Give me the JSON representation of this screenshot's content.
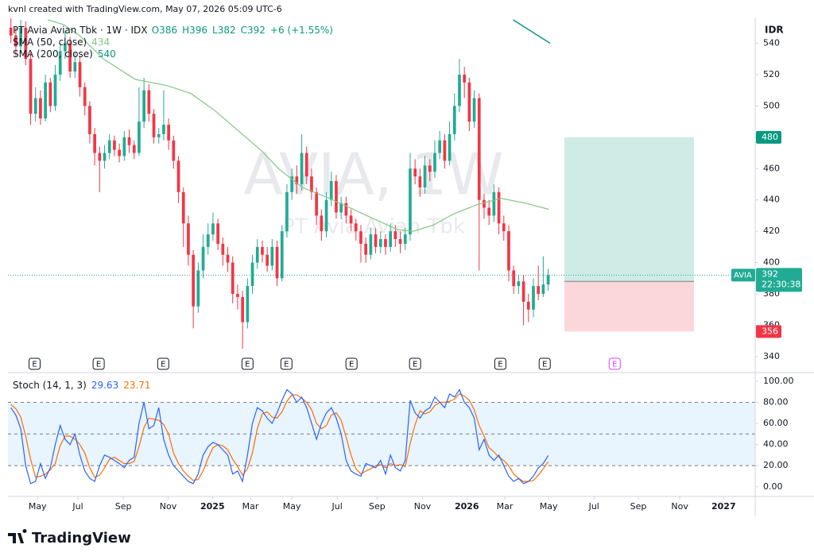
{
  "header": "kvnl created with TradingView.com, May 07, 2026 05:09 UTC-6",
  "logo": "TradingView",
  "chart_data": {
    "type": "candlestick",
    "symbol": "PT Avia Avian Tbk · 1W · IDX",
    "legend_values": [
      {
        "value": 386,
        "label": "O386"
      },
      {
        "value": 396,
        "label": "H396"
      },
      {
        "value": 382,
        "label": "L382"
      },
      {
        "value": 392,
        "label": "C392"
      },
      {
        "value": 6,
        "label": "+6 (+1.55%)"
      }
    ],
    "currency": "IDR",
    "up_color": "#22ab94",
    "down_color": "#f23645",
    "x": [
      -1,
      0,
      1,
      2,
      3,
      4,
      5,
      6,
      7,
      8,
      9,
      10,
      11,
      12,
      13,
      14,
      15,
      16,
      17,
      18,
      19,
      20,
      21,
      22,
      23,
      24,
      25,
      26,
      27,
      28,
      29,
      30,
      31,
      32,
      33,
      34,
      35,
      36,
      37,
      38,
      39,
      40,
      41,
      42,
      43,
      44,
      45,
      46,
      47,
      48,
      49,
      50,
      51,
      52,
      53,
      54,
      55,
      56,
      57,
      58,
      59,
      60,
      61,
      62,
      63,
      64,
      65,
      66,
      67,
      68,
      69,
      70,
      71,
      72,
      73,
      74,
      75,
      76,
      77,
      78,
      79,
      80,
      81,
      82,
      83,
      84,
      85,
      86,
      87,
      88,
      89,
      90,
      91,
      92,
      93,
      94,
      95,
      96,
      97,
      98,
      99,
      100,
      101,
      102,
      103,
      104,
      105,
      106,
      107,
      108
    ],
    "open": [
      550,
      545,
      538,
      550,
      530,
      495,
      505,
      492,
      515,
      500,
      520,
      535,
      540,
      522,
      528,
      512,
      500,
      482,
      470,
      465,
      470,
      478,
      472,
      468,
      480,
      475,
      470,
      490,
      510,
      495,
      480,
      482,
      488,
      478,
      465,
      445,
      425,
      405,
      372,
      395,
      410,
      418,
      425,
      412,
      405,
      400,
      380,
      378,
      362,
      385,
      400,
      410,
      405,
      398,
      410,
      390,
      420,
      445,
      455,
      450,
      470,
      455,
      445,
      430,
      420,
      440,
      452,
      432,
      438,
      430,
      425,
      420,
      412,
      405,
      418,
      410,
      415,
      410,
      420,
      415,
      412,
      418,
      460,
      455,
      448,
      462,
      458,
      470,
      478,
      465,
      482,
      500,
      520,
      515,
      490,
      505,
      440,
      435,
      430,
      445,
      425,
      420,
      395,
      385,
      388,
      375,
      370,
      385,
      380,
      386
    ],
    "high": [
      556,
      550,
      555,
      554,
      534,
      512,
      510,
      520,
      518,
      526,
      540,
      548,
      544,
      534,
      532,
      515,
      503,
      486,
      474,
      475,
      482,
      481,
      476,
      484,
      485,
      478,
      512,
      518,
      514,
      498,
      486,
      510,
      492,
      481,
      468,
      448,
      430,
      408,
      400,
      418,
      425,
      432,
      428,
      416,
      410,
      404,
      386,
      382,
      390,
      405,
      415,
      414,
      410,
      415,
      414,
      424,
      450,
      460,
      462,
      482,
      474,
      460,
      448,
      434,
      445,
      458,
      456,
      442,
      442,
      434,
      428,
      424,
      416,
      422,
      422,
      420,
      418,
      425,
      424,
      420,
      422,
      470,
      466,
      460,
      468,
      466,
      478,
      484,
      482,
      490,
      508,
      530,
      525,
      518,
      510,
      508,
      444,
      440,
      450,
      448,
      430,
      424,
      398,
      392,
      392,
      380,
      390,
      398,
      404,
      396
    ],
    "low": [
      540,
      532,
      534,
      526,
      488,
      490,
      488,
      490,
      496,
      497,
      516,
      530,
      518,
      518,
      506,
      494,
      476,
      462,
      445,
      460,
      466,
      468,
      464,
      465,
      470,
      466,
      468,
      486,
      490,
      476,
      476,
      478,
      472,
      460,
      438,
      410,
      398,
      358,
      368,
      390,
      405,
      414,
      408,
      398,
      394,
      374,
      370,
      345,
      358,
      380,
      396,
      400,
      394,
      395,
      385,
      388,
      416,
      440,
      444,
      446,
      450,
      440,
      424,
      414,
      416,
      436,
      428,
      428,
      425,
      420,
      414,
      400,
      400,
      402,
      406,
      406,
      405,
      407,
      410,
      406,
      408,
      414,
      450,
      442,
      444,
      452,
      454,
      466,
      460,
      462,
      478,
      496,
      505,
      484,
      486,
      395,
      428,
      424,
      426,
      418,
      414,
      388,
      380,
      380,
      360,
      362,
      365,
      376,
      378,
      382
    ],
    "close": [
      545,
      538,
      550,
      530,
      495,
      505,
      492,
      515,
      500,
      520,
      535,
      540,
      522,
      528,
      512,
      500,
      482,
      470,
      465,
      470,
      478,
      472,
      468,
      480,
      475,
      470,
      490,
      510,
      495,
      480,
      482,
      488,
      478,
      465,
      445,
      425,
      405,
      372,
      395,
      410,
      418,
      425,
      412,
      405,
      400,
      380,
      378,
      362,
      385,
      400,
      410,
      405,
      398,
      410,
      390,
      420,
      445,
      455,
      450,
      470,
      455,
      445,
      430,
      420,
      440,
      452,
      432,
      438,
      430,
      425,
      420,
      412,
      405,
      418,
      410,
      415,
      410,
      420,
      415,
      412,
      418,
      460,
      455,
      448,
      462,
      458,
      470,
      478,
      465,
      482,
      500,
      520,
      515,
      490,
      505,
      440,
      435,
      430,
      445,
      425,
      420,
      395,
      385,
      388,
      375,
      370,
      385,
      380,
      386,
      392
    ],
    "xlim": [
      -1.6,
      150
    ],
    "xticks": [
      {
        "value": 4.4,
        "label": "May"
      },
      {
        "value": 12.6,
        "label": "Jul"
      },
      {
        "value": 21.8,
        "label": "Sep"
      },
      {
        "value": 30.9,
        "label": "Nov"
      },
      {
        "value": 39.9,
        "label": "2025"
      },
      {
        "value": 47.6,
        "label": "Mar"
      },
      {
        "value": 56,
        "label": "May"
      },
      {
        "value": 65.2,
        "label": "Jul"
      },
      {
        "value": 73.3,
        "label": "Sep"
      },
      {
        "value": 82.5,
        "label": "Nov"
      },
      {
        "value": 91.5,
        "label": "2026"
      },
      {
        "value": 99.2,
        "label": "Mar"
      },
      {
        "value": 108.1,
        "label": "May"
      },
      {
        "value": 117.3,
        "label": "Jul"
      },
      {
        "value": 126.3,
        "label": "Sep"
      },
      {
        "value": 134.7,
        "label": "Nov"
      },
      {
        "value": 143.6,
        "label": "2027"
      }
    ],
    "ylim": [
      330.3,
      556.5
    ],
    "yticks": [
      340,
      360,
      380,
      400,
      420,
      440,
      460,
      480,
      500,
      520,
      540
    ],
    "sma": [
      {
        "name": "SMA (50, close)",
        "color": "#81c784",
        "x": [
          6.5,
          9.7,
          12.9,
          17.8,
          24.2,
          30.7,
          35.5,
          40.4,
          45.2,
          50,
          53.3,
          58.1,
          62.9,
          67.8,
          72.6,
          77.5,
          80.7,
          84.7,
          88.8,
          93.6,
          98.4,
          103.3,
          108.1
        ],
        "values": [
          555,
          552,
          545,
          530,
          517,
          513,
          508,
          497,
          484,
          471,
          460,
          448,
          442,
          435,
          428,
          421,
          420,
          424,
          431,
          437,
          441,
          438,
          434
        ]
      },
      {
        "name": "SMA (200, close)",
        "color": "#089981",
        "x": [
          100.9,
          108.4
        ],
        "values": [
          555,
          540
        ]
      }
    ],
    "price_line": {
      "value": 392,
      "label": "AVIA",
      "countdown": "22:30:38",
      "color": "#22ab94"
    },
    "position": {
      "target": 480,
      "entry": 388,
      "stop": 356,
      "x_start": 111.3,
      "x_end": 137.6
    },
    "watermark": [
      "AVIA, 1W",
      "PT Avia Avian Tbk"
    ],
    "earnings": {
      "label": "E",
      "x": [
        3.8,
        16.8,
        29.9,
        47,
        54.9,
        68.1,
        81,
        98.3,
        107.3,
        121.5
      ]
    },
    "stochastic": {
      "name": "Stoch (14, 1, 3)",
      "k": {
        "color": "#2962ff",
        "values": [
          75,
          68,
          55,
          20,
          3,
          5,
          22,
          8,
          18,
          40,
          58,
          45,
          40,
          50,
          30,
          15,
          8,
          5,
          20,
          30,
          28,
          25,
          22,
          18,
          25,
          28,
          60,
          80,
          55,
          58,
          75,
          45,
          30,
          20,
          15,
          10,
          5,
          3,
          12,
          30,
          38,
          42,
          40,
          35,
          30,
          12,
          15,
          5,
          30,
          60,
          75,
          72,
          65,
          60,
          70,
          82,
          92,
          88,
          80,
          85,
          75,
          60,
          45,
          60,
          70,
          75,
          65,
          50,
          25,
          15,
          12,
          10,
          22,
          20,
          18,
          25,
          12,
          30,
          18,
          15,
          25,
          82,
          70,
          65,
          72,
          75,
          85,
          80,
          75,
          88,
          85,
          92,
          80,
          75,
          65,
          35,
          45,
          30,
          25,
          30,
          20,
          10,
          5,
          8,
          3,
          5,
          10,
          18,
          22,
          29.63
        ]
      },
      "d": {
        "color": "#ff6d00",
        "values": [
          78,
          74,
          66,
          48,
          26,
          9,
          10,
          12,
          16,
          22,
          39,
          48,
          48,
          45,
          40,
          32,
          18,
          9,
          11,
          18,
          26,
          28,
          25,
          22,
          22,
          24,
          38,
          56,
          65,
          64,
          63,
          59,
          50,
          32,
          22,
          15,
          10,
          6,
          7,
          15,
          27,
          37,
          40,
          39,
          35,
          26,
          19,
          11,
          17,
          32,
          55,
          69,
          71,
          66,
          65,
          71,
          81,
          87,
          87,
          84,
          80,
          73,
          60,
          55,
          58,
          68,
          70,
          63,
          47,
          30,
          17,
          12,
          15,
          17,
          20,
          21,
          18,
          22,
          20,
          21,
          19,
          41,
          59,
          72,
          69,
          71,
          77,
          80,
          80,
          81,
          83,
          88,
          86,
          82,
          73,
          58,
          48,
          37,
          33,
          28,
          25,
          20,
          12,
          8,
          5,
          5,
          6,
          11,
          17,
          23.71
        ]
      },
      "ylim": [
        -9.2,
        107.5
      ],
      "yticks": [
        {
          "value": 100,
          "label": "100.00"
        },
        {
          "value": 80,
          "label": "80.00"
        },
        {
          "value": 60,
          "label": "60.00"
        },
        {
          "value": 40,
          "label": "40.00"
        },
        {
          "value": 20,
          "label": "20.00"
        },
        {
          "value": 0,
          "label": "0.00"
        }
      ],
      "band": [
        20,
        80
      ],
      "levels": [
        80,
        50,
        20
      ]
    }
  }
}
